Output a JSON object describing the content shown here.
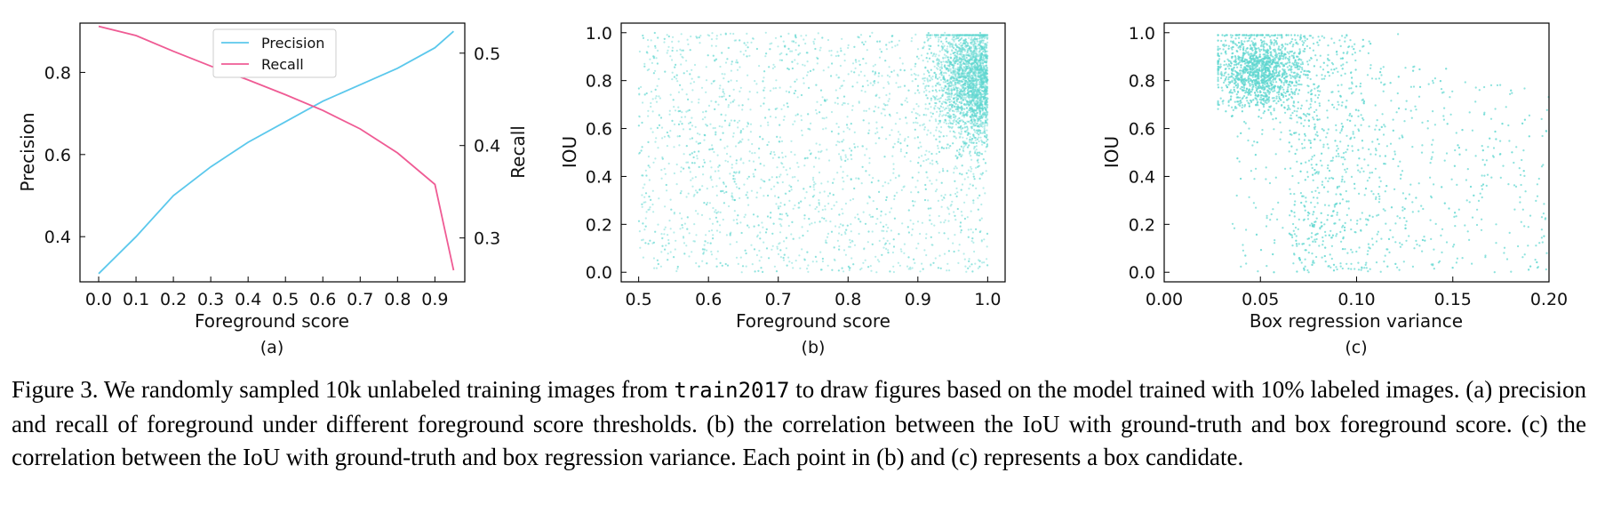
{
  "chart_data": [
    {
      "type": "line",
      "panel_label": "(a)",
      "xlabel": "Foreground score",
      "ylabel": "Precision",
      "ylabel_right": "Recall",
      "xlim": [
        -0.05,
        0.98
      ],
      "ylim": [
        0.29,
        0.92
      ],
      "ylim_right": [
        0.2525,
        0.5325
      ],
      "xticks": [
        "0.0",
        "0.1",
        "0.2",
        "0.3",
        "0.4",
        "0.5",
        "0.6",
        "0.7",
        "0.8",
        "0.9"
      ],
      "yticks": [
        "0.4",
        "0.6",
        "0.8"
      ],
      "yticks_right": [
        "0.3",
        "0.4",
        "0.5"
      ],
      "legend_position": "upper-center",
      "x": [
        0.0,
        0.1,
        0.2,
        0.3,
        0.4,
        0.5,
        0.6,
        0.7,
        0.8,
        0.9,
        0.95
      ],
      "series": [
        {
          "name": "Precision",
          "axis": "left",
          "color": "#5bc8ec",
          "values": [
            0.31,
            0.4,
            0.5,
            0.57,
            0.63,
            0.68,
            0.73,
            0.77,
            0.81,
            0.86,
            0.9
          ]
        },
        {
          "name": "Recall",
          "axis": "right",
          "color": "#ef5b94",
          "values": [
            0.529,
            0.519,
            0.502,
            0.486,
            0.471,
            0.455,
            0.438,
            0.418,
            0.392,
            0.358,
            0.265
          ]
        }
      ]
    },
    {
      "type": "scatter",
      "panel_label": "(b)",
      "xlabel": "Foreground score",
      "ylabel": "IOU",
      "xlim": [
        0.475,
        1.025
      ],
      "ylim": [
        -0.04,
        1.04
      ],
      "xticks": [
        "0.5",
        "0.6",
        "0.7",
        "0.8",
        "0.9",
        "1.0"
      ],
      "yticks": [
        "0.0",
        "0.2",
        "0.4",
        "0.6",
        "0.8",
        "1.0"
      ],
      "point_color": "#5fd6d0",
      "n_points": 10000,
      "description_of_distribution": [
        {
          "x_range": [
            0.5,
            1.0
          ],
          "y_range": [
            0.0,
            1.0
          ],
          "share": "sparse uniform background"
        },
        {
          "x_range": [
            0.9,
            1.0
          ],
          "y_range": [
            0.55,
            1.0
          ],
          "share": "dense cluster near x=1.0"
        }
      ]
    },
    {
      "type": "scatter",
      "panel_label": "(c)",
      "xlabel": "Box regression variance",
      "ylabel": "IOU",
      "xlim": [
        0.0,
        0.2
      ],
      "ylim": [
        -0.04,
        1.04
      ],
      "xticks": [
        "0.00",
        "0.05",
        "0.10",
        "0.15",
        "0.20"
      ],
      "yticks": [
        "0.0",
        "0.2",
        "0.4",
        "0.6",
        "0.8",
        "1.0"
      ],
      "point_color": "#5fd6d0",
      "n_points": 10000,
      "description_of_distribution": [
        {
          "x_center": 0.05,
          "y_center": 0.84,
          "share": "dense cluster"
        },
        {
          "x_range": [
            0.03,
            0.2
          ],
          "y_range": [
            0.0,
            1.0
          ],
          "share": "sparse spread decreasing with variance"
        }
      ]
    }
  ],
  "caption": {
    "part1": "Figure 3. We randomly sampled 10k unlabeled training images from ",
    "mono": "train2017",
    "part2": " to draw figures based on the model trained with 10% labeled images. (a) precision and recall of foreground under different foreground score thresholds. (b) the correlation between the IoU with ground-truth and box foreground score. (c) the correlation between the IoU with ground-truth and box regression variance. Each point in (b) and (c) represents a box candidate."
  }
}
